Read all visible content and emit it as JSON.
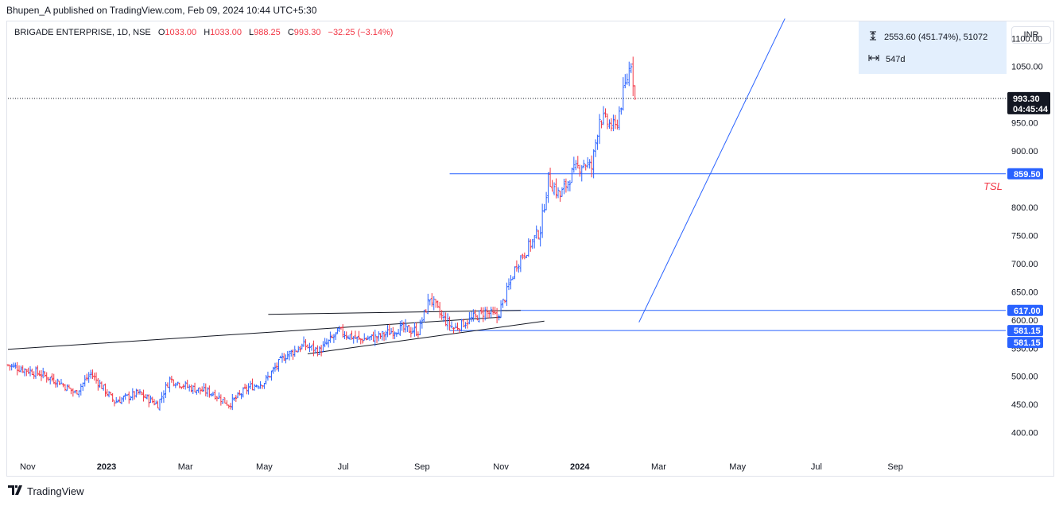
{
  "header": {
    "published": "Bhupen_A published on TradingView.com, Feb 09, 2024 10:44 UTC+5:30"
  },
  "legend": {
    "symbol": "BRIGADE ENTERPRISE, 1D, NSE",
    "open_label": "O",
    "open": "1033.00",
    "high_label": "H",
    "high": "1033.00",
    "low_label": "L",
    "low": "988.25",
    "close_label": "C",
    "close": "993.30",
    "change": "−32.25 (−3.14%)"
  },
  "currency": "INR",
  "measure": {
    "range": "2553.60 (451.74%), 51072",
    "duration": "547d"
  },
  "footer": {
    "brand": "TradingView"
  },
  "colors": {
    "up": "#2962ff",
    "down": "#f23645",
    "line": "#2962ff",
    "trend": "#131722"
  },
  "chart_data": {
    "type": "ohlc",
    "title": "BRIGADE ENTERPRISE, 1D, NSE",
    "xlabel": "",
    "ylabel": "",
    "ylim": [
      360,
      1130
    ],
    "y_ticks": [
      "1100.00",
      "1050.00",
      "950.00",
      "900.00",
      "800.00",
      "750.00",
      "700.00",
      "650.00",
      "600.00",
      "550.00",
      "500.00",
      "450.00",
      "400.00"
    ],
    "x_ticks": [
      {
        "label": "Nov",
        "month": 0,
        "bold": false
      },
      {
        "label": "2023",
        "month": 2,
        "bold": true
      },
      {
        "label": "Mar",
        "month": 4,
        "bold": false
      },
      {
        "label": "May",
        "month": 6,
        "bold": false
      },
      {
        "label": "Jul",
        "month": 8,
        "bold": false
      },
      {
        "label": "Sep",
        "month": 10,
        "bold": false
      },
      {
        "label": "Nov",
        "month": 12,
        "bold": false
      },
      {
        "label": "2024",
        "month": 14,
        "bold": true
      },
      {
        "label": "Mar",
        "month": 16,
        "bold": false
      },
      {
        "label": "May",
        "month": 18,
        "bold": false
      },
      {
        "label": "Jul",
        "month": 20,
        "bold": false
      },
      {
        "label": "Sep",
        "month": 22,
        "bold": false
      }
    ],
    "x_range_months": [
      -0.5,
      24.8
    ],
    "price_path": [
      [
        -0.5,
        520
      ],
      [
        0.3,
        505
      ],
      [
        0.8,
        490
      ],
      [
        1.2,
        470
      ],
      [
        1.6,
        505
      ],
      [
        2.2,
        455
      ],
      [
        2.8,
        470
      ],
      [
        3.3,
        450
      ],
      [
        3.6,
        495
      ],
      [
        4.1,
        480
      ],
      [
        4.7,
        470
      ],
      [
        5.1,
        450
      ],
      [
        5.6,
        480
      ],
      [
        6.0,
        490
      ],
      [
        6.5,
        535
      ],
      [
        7.0,
        555
      ],
      [
        7.4,
        545
      ],
      [
        7.9,
        580
      ],
      [
        8.4,
        565
      ],
      [
        8.9,
        570
      ],
      [
        9.4,
        585
      ],
      [
        9.9,
        580
      ],
      [
        10.2,
        640
      ],
      [
        10.5,
        605
      ],
      [
        10.8,
        585
      ],
      [
        11.2,
        600
      ],
      [
        11.6,
        615
      ],
      [
        11.9,
        605
      ],
      [
        12.1,
        640
      ],
      [
        12.4,
        700
      ],
      [
        12.7,
        730
      ],
      [
        13.0,
        760
      ],
      [
        13.2,
        850
      ],
      [
        13.5,
        820
      ],
      [
        13.8,
        860
      ],
      [
        14.1,
        880
      ],
      [
        14.3,
        870
      ],
      [
        14.5,
        960
      ],
      [
        14.7,
        950
      ],
      [
        14.9,
        940
      ],
      [
        15.1,
        1000
      ],
      [
        15.3,
        1060
      ],
      [
        15.4,
        993.3
      ]
    ],
    "horizontal_levels": [
      {
        "value": 859.5,
        "label": "859.50",
        "start_month": 10.7
      },
      {
        "value": 617.0,
        "label": "617.00",
        "start_month": 12.0
      },
      {
        "value": 581.15,
        "label": "581.15",
        "start_month": 10.7
      }
    ],
    "last_price": {
      "value": 993.3,
      "label": "993.30",
      "countdown": "04:45:44"
    },
    "annotation": "TSL",
    "trend_lines": [
      {
        "from": [
          -0.5,
          548
        ],
        "to": [
          12.0,
          605
        ]
      },
      {
        "from": [
          6.1,
          610
        ],
        "to": [
          12.5,
          617
        ]
      },
      {
        "from": [
          7.1,
          540
        ],
        "to": [
          13.1,
          598
        ]
      }
    ],
    "projection_line": {
      "from": [
        15.5,
        596
      ],
      "to": [
        19.2,
        1135
      ]
    }
  }
}
